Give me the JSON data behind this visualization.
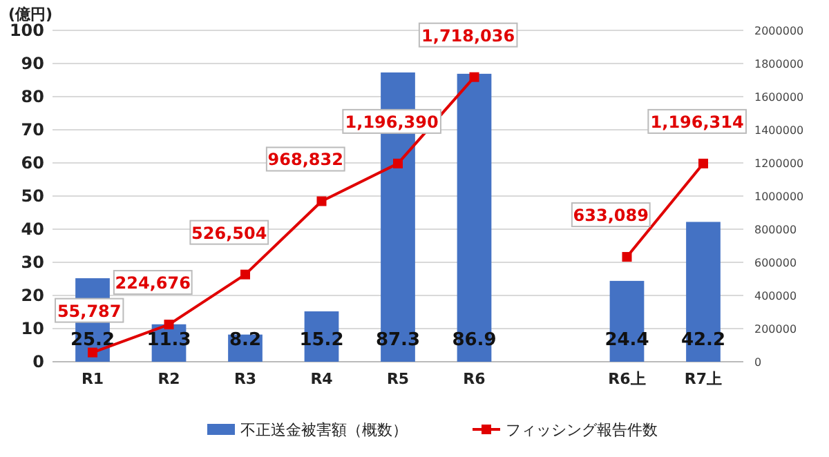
{
  "chart_data": {
    "type": "bar",
    "ylabel": "(億円)",
    "categories": [
      "R1",
      "R2",
      "R3",
      "R4",
      "R5",
      "R6",
      null,
      "R6上",
      "R7上"
    ],
    "series": [
      {
        "name": "不正送金被害額（概数）",
        "color": "#4472c4",
        "values": [
          25.2,
          11.3,
          8.2,
          15.2,
          87.3,
          86.9,
          null,
          24.4,
          42.2
        ]
      },
      {
        "name": "フィッシング報告件数",
        "type": "line",
        "axis": "y2",
        "color": "#e00000",
        "marker": "square",
        "values": [
          55787,
          224676,
          526504,
          968832,
          1196390,
          1718036,
          null,
          633089,
          1196314
        ],
        "value_labels": [
          "55,787",
          "224,676",
          "526,504",
          "968,832",
          "1,196,390",
          "1,718,036",
          null,
          "633,089",
          "1,196,314"
        ]
      }
    ],
    "ylim": [
      0,
      100
    ],
    "yticks": [
      0,
      10,
      20,
      30,
      40,
      50,
      60,
      70,
      80,
      90,
      100
    ],
    "y2lim": [
      0,
      2000000
    ],
    "y2ticks": [
      0,
      200000,
      400000,
      600000,
      800000,
      1000000,
      1200000,
      1400000,
      1600000,
      1800000,
      2000000
    ],
    "grid": "y",
    "legend": "bottom",
    "data_labels": true
  }
}
